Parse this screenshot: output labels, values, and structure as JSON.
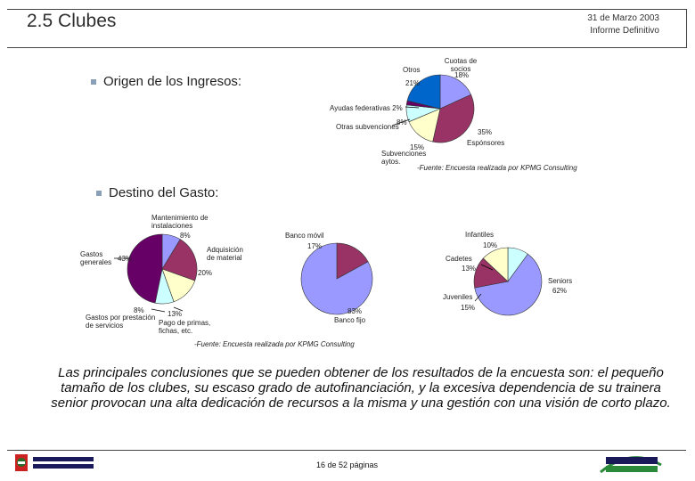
{
  "header": {
    "title": "2.5 Clubes",
    "date": "31 de Marzo 2003",
    "subtitle": "Informe Definitivo"
  },
  "section1": {
    "heading": "Origen de los Ingresos:",
    "source": "-Fuente: Encuesta realizada por KPMG Consulting"
  },
  "section2": {
    "heading": "Destino del Gasto:",
    "source": "-Fuente: Encuesta realizada por KPMG Consulting"
  },
  "chart_data": [
    {
      "type": "pie",
      "title": "",
      "slices": [
        {
          "label": "Cuotas de socios",
          "value": 18,
          "text": "18%",
          "color": "#9999ff"
        },
        {
          "label": "Espónsores",
          "value": 35,
          "text": "35%",
          "color": "#993366"
        },
        {
          "label": "Subvenciones aytos.",
          "value": 15,
          "text": "15%",
          "color": "#ffffcc"
        },
        {
          "label": "Otras subvenciones",
          "value": 8,
          "text": "8%",
          "color": "#ccffff"
        },
        {
          "label": "Ayudas federativas",
          "value": 2,
          "text": "2%",
          "color": "#660066"
        },
        {
          "label": "Otros",
          "value": 21,
          "text": "21%",
          "color": "#0066cc"
        }
      ]
    },
    {
      "type": "pie",
      "title": "",
      "slices": [
        {
          "label": "Mantenimiento de instalaciones",
          "value": 8,
          "text": "8%",
          "color": "#9999ff"
        },
        {
          "label": "Adquisición de material",
          "value": 20,
          "text": "20%",
          "color": "#993366"
        },
        {
          "label": "Pago de primas, fichas, etc.",
          "value": 13,
          "text": "13%",
          "color": "#ffffcc"
        },
        {
          "label": "Gastos por prestación de servicios",
          "value": 8,
          "text": "8%",
          "color": "#ccffff"
        },
        {
          "label": "Gastos generales",
          "value": 43,
          "text": "43%",
          "color": "#660066"
        }
      ]
    },
    {
      "type": "pie",
      "title": "",
      "slices": [
        {
          "label": "Banco móvil",
          "value": 17,
          "text": "17%",
          "color": "#993366"
        },
        {
          "label": "Banco fijo",
          "value": 83,
          "text": "83%",
          "color": "#9999ff"
        }
      ]
    },
    {
      "type": "pie",
      "title": "",
      "slices": [
        {
          "label": "Infantiles",
          "value": 10,
          "text": "10%",
          "color": "#ccffff"
        },
        {
          "label": "Seniors",
          "value": 62,
          "text": "62%",
          "color": "#9999ff"
        },
        {
          "label": "Juveniles",
          "value": 15,
          "text": "15%",
          "color": "#993366"
        },
        {
          "label": "Cadetes",
          "value": 13,
          "text": "13%",
          "color": "#ffffcc"
        }
      ]
    }
  ],
  "conclusion": "Las principales conclusiones que se pueden obtener de los resultados de la encuesta son: el pequeño tamaño de los clubes, su escaso grado de autofinanciación, y la excesiva dependencia de su trainera senior provocan una alta dedicación de recursos a la misma y una gestión con una visión de corto plazo.",
  "footer": {
    "page": "16 de 52 páginas"
  },
  "icons": {
    "left_logo": "basque-government-logo",
    "right_logo": "euskadi-logo"
  }
}
